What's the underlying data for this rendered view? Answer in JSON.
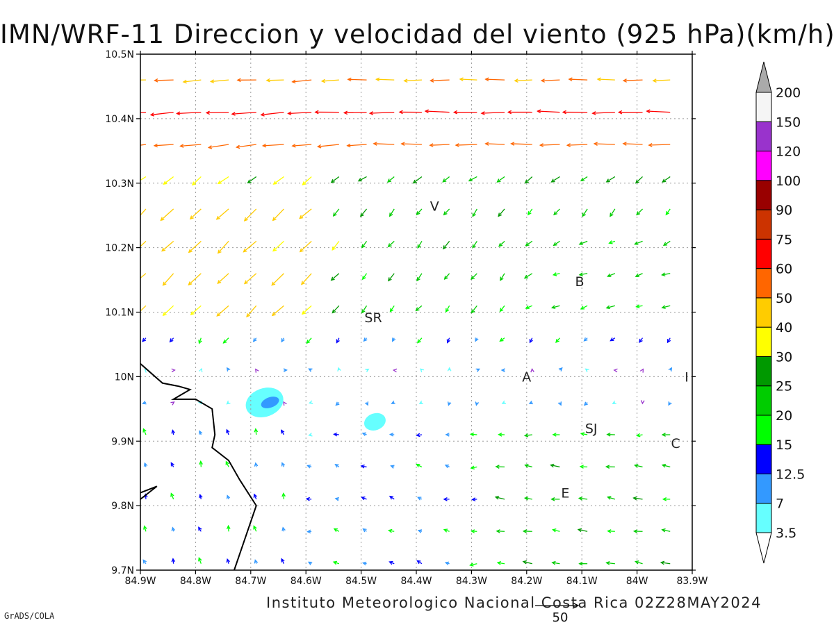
{
  "title": "IMN/WRF-11 Direccion y velocidad del viento (925 hPa)(km/h)",
  "footer": "Instituto Meteorologico Nacional Costa Rica 02Z28MAY2024",
  "credit": "GrADS/COLA",
  "reference_vector": {
    "label": "50",
    "speed": 50
  },
  "map": {
    "lon_range": [
      -84.9,
      -83.9
    ],
    "lat_range": [
      9.7,
      10.5
    ],
    "x_ticks": [
      "84.9W",
      "84.8W",
      "84.7W",
      "84.6W",
      "84.5W",
      "84.4W",
      "84.3W",
      "84.2W",
      "84.1W",
      "84W",
      "83.9W"
    ],
    "y_ticks": [
      "9.7N",
      "9.8N",
      "9.9N",
      "10N",
      "10.1N",
      "10.2N",
      "10.3N",
      "10.4N",
      "10.5N"
    ],
    "grid": true,
    "stations": [
      {
        "label": "V",
        "lon": -84.367,
        "lat": 10.265
      },
      {
        "label": "B",
        "lon": -84.104,
        "lat": 10.148
      },
      {
        "label": "SR",
        "lon": -84.478,
        "lat": 10.092
      },
      {
        "label": "A",
        "lon": -84.2,
        "lat": 10.0
      },
      {
        "label": "I",
        "lon": -83.91,
        "lat": 10.0
      },
      {
        "label": "SJ",
        "lon": -84.083,
        "lat": 9.92
      },
      {
        "label": "C",
        "lon": -83.93,
        "lat": 9.897
      },
      {
        "label": "E",
        "lon": -84.13,
        "lat": 9.82
      }
    ],
    "coastline": [
      [
        [
          -84.9,
          10.02
        ],
        [
          -84.86,
          9.99
        ],
        [
          -84.83,
          9.985
        ],
        [
          -84.81,
          9.98
        ],
        [
          -84.84,
          9.965
        ],
        [
          -84.8,
          9.965
        ],
        [
          -84.77,
          9.95
        ],
        [
          -84.765,
          9.91
        ],
        [
          -84.77,
          9.89
        ],
        [
          -84.74,
          9.87
        ],
        [
          -84.72,
          9.84
        ],
        [
          -84.69,
          9.8
        ],
        [
          -84.71,
          9.75
        ],
        [
          -84.73,
          9.7
        ]
      ],
      [
        [
          -84.9,
          9.81
        ],
        [
          -84.87,
          9.83
        ],
        [
          -84.9,
          9.82
        ]
      ]
    ],
    "shaded_areas": [
      {
        "level": "3.5-7",
        "color": "#66ffff",
        "center": [
          -84.675,
          9.96
        ],
        "radius": [
          0.035,
          0.022
        ]
      },
      {
        "level": "7-12.5",
        "color": "#3399ff",
        "center": [
          -84.665,
          9.96
        ],
        "radius": [
          0.017,
          0.008
        ]
      },
      {
        "level": "3.5-7",
        "color": "#66ffff",
        "center": [
          -84.475,
          9.93
        ],
        "radius": [
          0.02,
          0.013
        ]
      }
    ]
  },
  "colorbar": {
    "levels": [
      "3.5",
      "7",
      "12.5",
      "15",
      "20",
      "25",
      "30",
      "40",
      "50",
      "60",
      "75",
      "90",
      "100",
      "120",
      "150",
      "200"
    ],
    "colors": [
      "#66ffff",
      "#3399ff",
      "#0000ff",
      "#00ff00",
      "#00cc00",
      "#009900",
      "#ffff00",
      "#ffcc00",
      "#ff6600",
      "#ff0000",
      "#cc3300",
      "#990000",
      "#ff00ff",
      "#9933cc",
      "#f5f5f5"
    ],
    "low_arrow_color": "#ffffff",
    "high_arrow_color": "#aaaaaa"
  },
  "chart_data": {
    "type": "vector_field",
    "x_extent_lon": [
      -84.9,
      -83.9
    ],
    "y_extent_lat": [
      9.7,
      10.5
    ],
    "grid_step_deg": 0.05,
    "units": "km/h",
    "flow_regions": [
      {
        "area": "north (10.35-10.5N)",
        "direction": "from east",
        "speed_range": [
          40,
          75
        ]
      },
      {
        "area": "northwest (10.1-10.3N, 84.9-84.6W)",
        "direction": "from northeast",
        "speed_range": [
          25,
          50
        ]
      },
      {
        "area": "central (9.95-10.05N)",
        "direction": "variable",
        "speed_range": [
          3,
          15
        ]
      },
      {
        "area": "southwest (9.7-9.95N, 84.9-84.6W)",
        "direction": "from south",
        "speed_range": [
          3,
          15
        ]
      },
      {
        "area": "southeast (9.75-9.9N, 84.2-83.9W)",
        "direction": "from east",
        "speed_range": [
          15,
          30
        ]
      }
    ]
  }
}
